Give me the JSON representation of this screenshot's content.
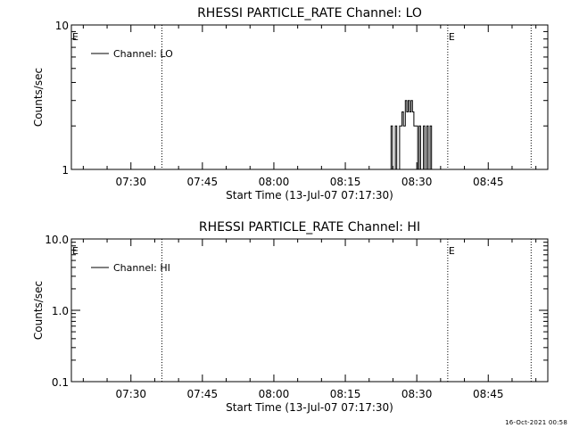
{
  "footer_timestamp": "16-Oct-2021 00:58",
  "chart_data": [
    {
      "type": "line",
      "title": "RHESSI PARTICLE_RATE Channel: LO",
      "xlabel": "Start Time (13-Jul-07 07:17:30)",
      "ylabel": "Counts/sec",
      "y_scale": "log",
      "ylim": [
        1,
        10
      ],
      "y_tick_labels": [
        "1",
        "10"
      ],
      "x_tick_labels": [
        "07:30",
        "07:45",
        "08:00",
        "08:15",
        "08:30",
        "08:45"
      ],
      "x_tick_minutes": [
        30,
        45,
        60,
        75,
        90,
        105
      ],
      "xlim_minutes": [
        17.5,
        117.5
      ],
      "legend": "top-left",
      "grid": false,
      "series": [
        {
          "name": "Channel: LO",
          "color": "#000000",
          "points": [
            [
              84.6,
              1
            ],
            [
              84.6,
              2
            ],
            [
              84.9,
              2
            ],
            [
              84.9,
              1
            ],
            [
              85.5,
              1
            ],
            [
              85.5,
              2
            ],
            [
              85.8,
              2
            ],
            [
              85.8,
              1
            ],
            [
              86.4,
              1
            ],
            [
              86.4,
              2
            ],
            [
              86.9,
              2
            ],
            [
              86.9,
              2.5
            ],
            [
              87.2,
              2.5
            ],
            [
              87.2,
              2
            ],
            [
              87.6,
              2
            ],
            [
              87.6,
              3
            ],
            [
              87.9,
              3
            ],
            [
              87.9,
              2.5
            ],
            [
              88.2,
              2.5
            ],
            [
              88.2,
              3
            ],
            [
              88.5,
              3
            ],
            [
              88.5,
              2.5
            ],
            [
              88.8,
              2.5
            ],
            [
              88.8,
              3
            ],
            [
              89.1,
              3
            ],
            [
              89.1,
              2.5
            ],
            [
              89.4,
              2.5
            ],
            [
              89.4,
              2
            ],
            [
              90.2,
              2
            ],
            [
              90.2,
              1
            ],
            [
              90.5,
              1
            ],
            [
              90.5,
              2
            ],
            [
              90.8,
              2
            ],
            [
              90.8,
              1
            ],
            [
              91.4,
              1
            ],
            [
              91.4,
              2
            ],
            [
              91.7,
              2
            ],
            [
              91.7,
              1
            ],
            [
              92.1,
              1
            ],
            [
              92.1,
              2
            ],
            [
              92.4,
              2
            ],
            [
              92.4,
              1
            ],
            [
              92.8,
              1
            ],
            [
              92.8,
              2
            ],
            [
              93.1,
              2
            ],
            [
              93.1,
              1
            ]
          ]
        }
      ],
      "event_lines": [
        {
          "minute": 36.5,
          "label": ""
        },
        {
          "minute": 96.5,
          "label": "E"
        },
        {
          "minute": 114.0,
          "label": ""
        }
      ],
      "edge_label": "E"
    },
    {
      "type": "line",
      "title": "RHESSI PARTICLE_RATE Channel: HI",
      "xlabel": "Start Time (13-Jul-07 07:17:30)",
      "ylabel": "Counts/sec",
      "y_scale": "log",
      "ylim": [
        0.1,
        10
      ],
      "y_tick_labels": [
        "0.1",
        "1.0",
        "10.0"
      ],
      "x_tick_labels": [
        "07:30",
        "07:45",
        "08:00",
        "08:15",
        "08:30",
        "08:45"
      ],
      "x_tick_minutes": [
        30,
        45,
        60,
        75,
        90,
        105
      ],
      "xlim_minutes": [
        17.5,
        117.5
      ],
      "legend": "top-left",
      "grid": false,
      "series": [
        {
          "name": "Channel: HI",
          "color": "#000000",
          "points": []
        }
      ],
      "event_lines": [
        {
          "minute": 36.5,
          "label": ""
        },
        {
          "minute": 96.5,
          "label": "E"
        },
        {
          "minute": 114.0,
          "label": ""
        }
      ],
      "edge_label": "E"
    }
  ]
}
